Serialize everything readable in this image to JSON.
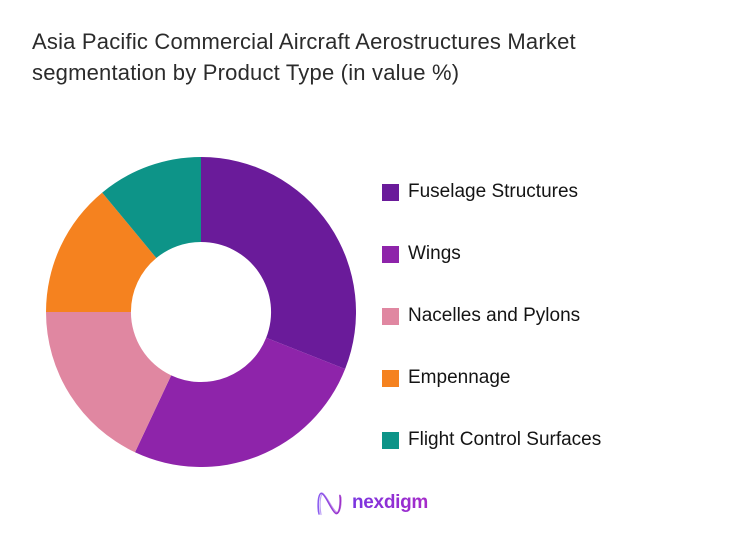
{
  "page": {
    "background": "#ffffff"
  },
  "title": "Asia Pacific Commercial Aircraft Aerostructures Market segmentation by Product Type (in value %)",
  "chart_data": {
    "type": "pie",
    "subtype": "donut",
    "title": "Asia Pacific Commercial Aircraft Aerostructures Market segmentation by Product Type (in value %)",
    "unit": "value %",
    "start_angle_deg": 0,
    "direction": "clockwise",
    "inner_radius_ratio": 0.452,
    "legend_position": "right",
    "data_labels": false,
    "series": [
      {
        "name": "Fuselage Structures",
        "value": 31,
        "color": "#6a1b9a"
      },
      {
        "name": "Wings",
        "value": 26,
        "color": "#8e24aa"
      },
      {
        "name": "Nacelles and Pylons",
        "value": 18,
        "color": "#e087a1"
      },
      {
        "name": "Empennage",
        "value": 14,
        "color": "#f5821f"
      },
      {
        "name": "Flight Control Surfaces",
        "value": 11,
        "color": "#0d9488"
      }
    ]
  },
  "footer": {
    "logo_text": "nexdigm",
    "brand_color": "#8b2fc9"
  }
}
